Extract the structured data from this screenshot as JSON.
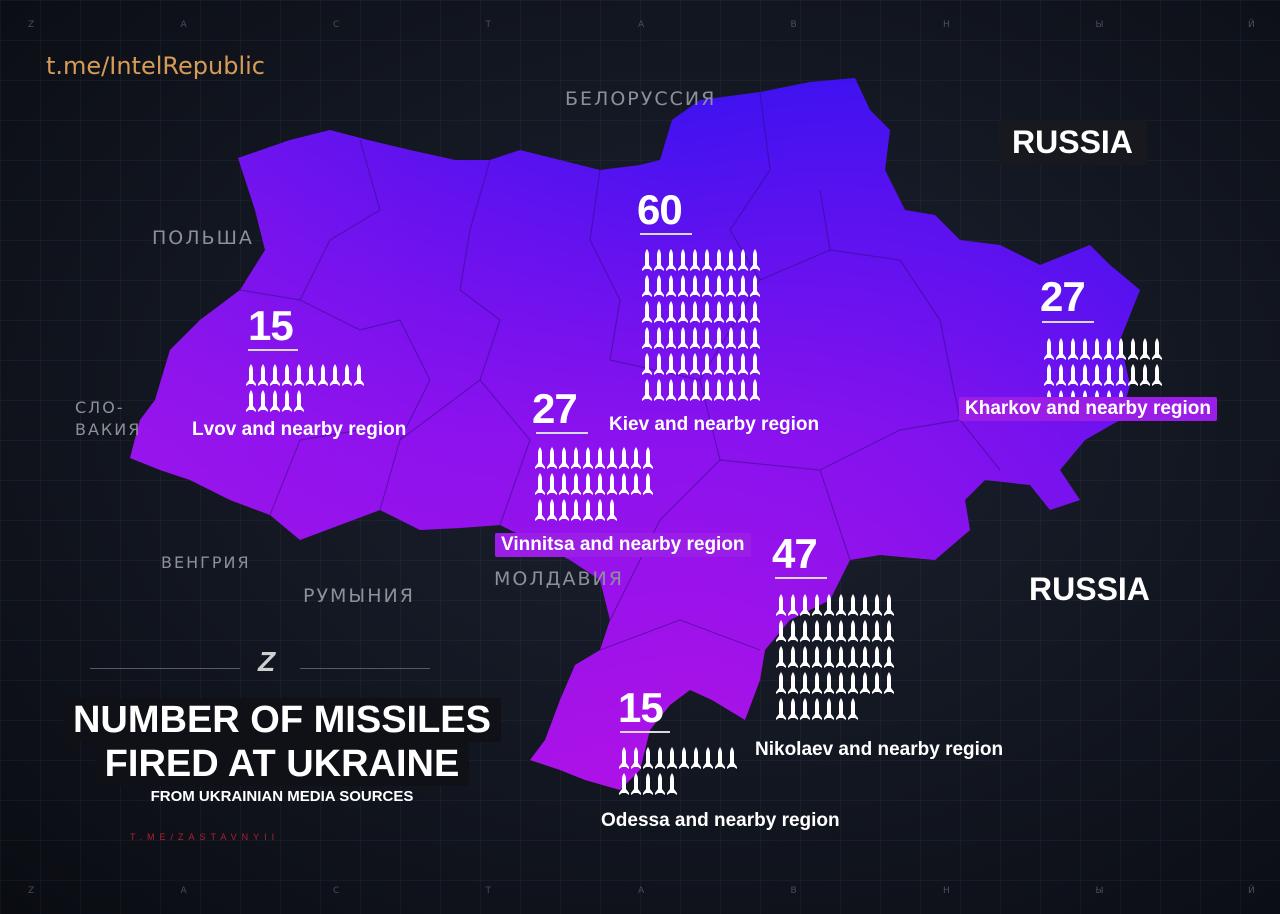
{
  "watermark": "t.me/IntelRepublic",
  "bottom_watermark": "T.ME/ZASTAVNYII",
  "emblem": "Z",
  "edge_letters_top": [
    "Z",
    "А",
    "С",
    "Т",
    "А",
    "В",
    "Н",
    "Ы",
    "Й"
  ],
  "edge_letters_bottom": [
    "Z",
    "А",
    "С",
    "Т",
    "А",
    "В",
    "Н",
    "Ы",
    "Й"
  ],
  "neighbors": {
    "belarus": "БЕЛОРУССИЯ",
    "poland": "ПОЛЬША",
    "slovakia_1": "СЛО-",
    "slovakia_2": "ВАКИЯ",
    "hungary": "ВЕНГРИЯ",
    "romania": "РУМЫНИЯ",
    "moldova": "МОЛДАВИЯ",
    "russia_north": "RUSSIA",
    "russia_south": "RUSSIA"
  },
  "title_line1": "NUMBER OF MISSILES",
  "title_line2": "FIRED AT UKRAINE",
  "subtitle": "FROM UKRAINIAN MEDIA SOURCES",
  "colors": {
    "map_north": "#3a12f0",
    "map_mid": "#8a12ee",
    "map_south": "#b012e6",
    "label_pill": "#9b1ee6",
    "missile": "#ffffff"
  },
  "regions": [
    {
      "id": "lvov",
      "count": "15",
      "label": "Lvov and nearby region",
      "missiles": 15,
      "pill": false
    },
    {
      "id": "kiev",
      "count": "60",
      "label": "Kiev and nearby region",
      "missiles": 60,
      "pill": false
    },
    {
      "id": "kharkov",
      "count": "27",
      "label": "Kharkov and nearby region",
      "missiles": 27,
      "pill": true
    },
    {
      "id": "vinnitsa",
      "count": "27",
      "label": "Vinnitsa and nearby region",
      "missiles": 27,
      "pill": true
    },
    {
      "id": "nikolaev",
      "count": "47",
      "label": "Nikolaev and nearby region",
      "missiles": 47,
      "pill": false
    },
    {
      "id": "odessa",
      "count": "15",
      "label": "Odessa and nearby region",
      "missiles": 15,
      "pill": false
    }
  ]
}
